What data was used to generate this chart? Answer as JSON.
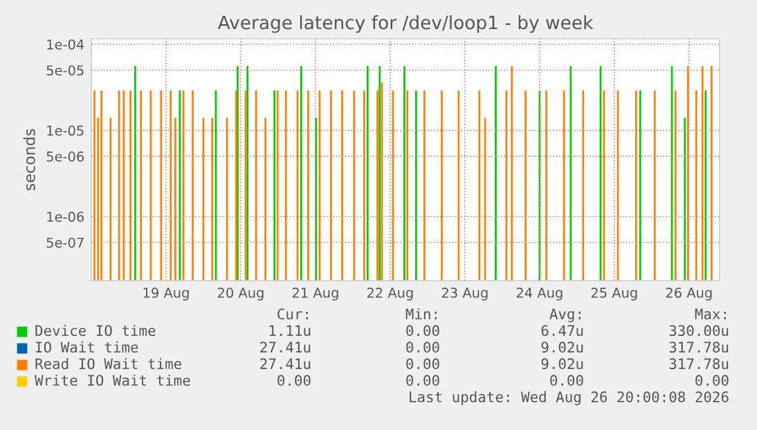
{
  "chart_data": {
    "type": "bar",
    "title": "Average latency for /dev/loop1 - by week",
    "ylabel": "seconds",
    "log": "y",
    "ylim": [
      1.8e-07,
      0.000116
    ],
    "yticks": [
      {
        "value": 5e-07,
        "label": "5e-07"
      },
      {
        "value": 1e-06,
        "label": "1e-06"
      },
      {
        "value": 5e-06,
        "label": "5e-06"
      },
      {
        "value": 1e-05,
        "label": "1e-05"
      },
      {
        "value": 5e-05,
        "label": "5e-05"
      },
      {
        "value": 0.0001,
        "label": "1e-04"
      }
    ],
    "xlim": [
      "2026-08-18T12:00",
      "2026-08-26T21:50"
    ],
    "xticks": [
      {
        "value": "2026-08-19T12:00",
        "label": "19 Aug"
      },
      {
        "value": "2026-08-20T12:00",
        "label": "20 Aug"
      },
      {
        "value": "2026-08-21T12:00",
        "label": "21 Aug"
      },
      {
        "value": "2026-08-22T12:00",
        "label": "22 Aug"
      },
      {
        "value": "2026-08-23T12:00",
        "label": "23 Aug"
      },
      {
        "value": "2026-08-24T12:00",
        "label": "24 Aug"
      },
      {
        "value": "2026-08-25T12:00",
        "label": "25 Aug"
      },
      {
        "value": "2026-08-26T12:00",
        "label": "26 Aug"
      }
    ],
    "grid": true,
    "legend": "bottom",
    "series": [
      {
        "name": "Device IO time",
        "color": "#00cc00",
        "x": [
          "2026-08-19T02:05",
          "2026-08-19T16:25",
          "2026-08-20T04:00",
          "2026-08-20T11:00",
          "2026-08-20T14:10",
          "2026-08-20T22:50",
          "2026-08-21T07:25",
          "2026-08-21T12:10",
          "2026-08-22T04:45",
          "2026-08-22T08:38",
          "2026-08-22T16:35",
          "2026-08-22T20:20",
          "2026-08-23T21:55",
          "2026-08-24T12:00",
          "2026-08-24T22:00",
          "2026-08-25T07:35",
          "2026-08-25T20:20",
          "2026-08-26T06:30",
          "2026-08-26T10:40",
          "2026-08-26T17:20"
        ],
        "values": [
          5.6e-05,
          2.9e-05,
          2.9e-05,
          5.6e-05,
          5.6e-05,
          2.9e-05,
          5.6e-05,
          1.4e-05,
          5.6e-05,
          5.6e-05,
          5.6e-05,
          2.9e-05,
          5.6e-05,
          2.9e-05,
          5.6e-05,
          5.6e-05,
          2.9e-05,
          5.6e-05,
          1.4e-05,
          2.9e-05
        ]
      },
      {
        "name": "IO Wait time",
        "color": "#0066b3"
      },
      {
        "name": "Read IO Wait time",
        "color": "#ff8000",
        "x": [
          "2026-08-18T13:00",
          "2026-08-18T14:10",
          "2026-08-18T15:15",
          "2026-08-18T18:10",
          "2026-08-18T20:55",
          "2026-08-18T22:25",
          "2026-08-19T00:35",
          "2026-08-19T03:55",
          "2026-08-19T07:05",
          "2026-08-19T10:25",
          "2026-08-19T13:30",
          "2026-08-19T15:00",
          "2026-08-19T17:35",
          "2026-08-19T20:35",
          "2026-08-20T00:00",
          "2026-08-20T02:50",
          "2026-08-20T07:35",
          "2026-08-20T10:30",
          "2026-08-20T13:35",
          "2026-08-20T16:55",
          "2026-08-20T19:55",
          "2026-08-20T23:50",
          "2026-08-21T02:30",
          "2026-08-21T06:15",
          "2026-08-21T09:40",
          "2026-08-21T13:20",
          "2026-08-21T17:00",
          "2026-08-21T20:35",
          "2026-08-22T00:25",
          "2026-08-22T03:40",
          "2026-08-22T07:55",
          "2026-08-22T09:20",
          "2026-08-22T12:55",
          "2026-08-22T17:30",
          "2026-08-22T23:00",
          "2026-08-23T04:35",
          "2026-08-23T10:00",
          "2026-08-23T16:40",
          "2026-08-23T18:30",
          "2026-08-24T01:20",
          "2026-08-24T03:05",
          "2026-08-24T07:30",
          "2026-08-24T14:10",
          "2026-08-24T19:50",
          "2026-08-25T02:00",
          "2026-08-25T08:40",
          "2026-08-25T13:10",
          "2026-08-25T19:00",
          "2026-08-26T01:00",
          "2026-08-26T07:40",
          "2026-08-26T11:40",
          "2026-08-26T14:20",
          "2026-08-26T16:20",
          "2026-08-26T19:15"
        ],
        "values": [
          2.9e-05,
          1.4e-05,
          2.9e-05,
          1.4e-05,
          2.9e-05,
          2.9e-05,
          2.9e-05,
          2.9e-05,
          2.9e-05,
          2.9e-05,
          2.9e-05,
          1.4e-05,
          2.9e-05,
          2.9e-05,
          1.4e-05,
          1.4e-05,
          1.4e-05,
          2.9e-05,
          2.9e-05,
          2.9e-05,
          1.4e-05,
          2.9e-05,
          2.9e-05,
          2.9e-05,
          2.9e-05,
          2.9e-05,
          2.9e-05,
          2.9e-05,
          2.9e-05,
          2.9e-05,
          2.9e-05,
          3.6e-05,
          2.9e-05,
          2.9e-05,
          2.9e-05,
          2.9e-05,
          2.9e-05,
          2.9e-05,
          1.4e-05,
          2.9e-05,
          5.6e-05,
          2.9e-05,
          2.9e-05,
          2.9e-05,
          2.9e-05,
          2.9e-05,
          2.9e-05,
          2.9e-05,
          2.9e-05,
          2.9e-05,
          5.6e-05,
          2.9e-05,
          5.6e-05,
          5.6e-05
        ]
      },
      {
        "name": "Write IO Wait time",
        "color": "#ffcc00"
      }
    ],
    "annotations": [
      "Cur:",
      "Min:",
      "Avg:",
      "Max:",
      "1.11u",
      "0.00",
      "6.47u",
      "330.00u",
      "27.41u",
      "0.00",
      "9.02u",
      "317.78u",
      "27.41u",
      "0.00",
      "9.02u",
      "317.78u",
      "0.00",
      "0.00",
      "0.00",
      "0.00",
      "Last update: Wed Aug 26 20:00:08 2026"
    ]
  }
}
